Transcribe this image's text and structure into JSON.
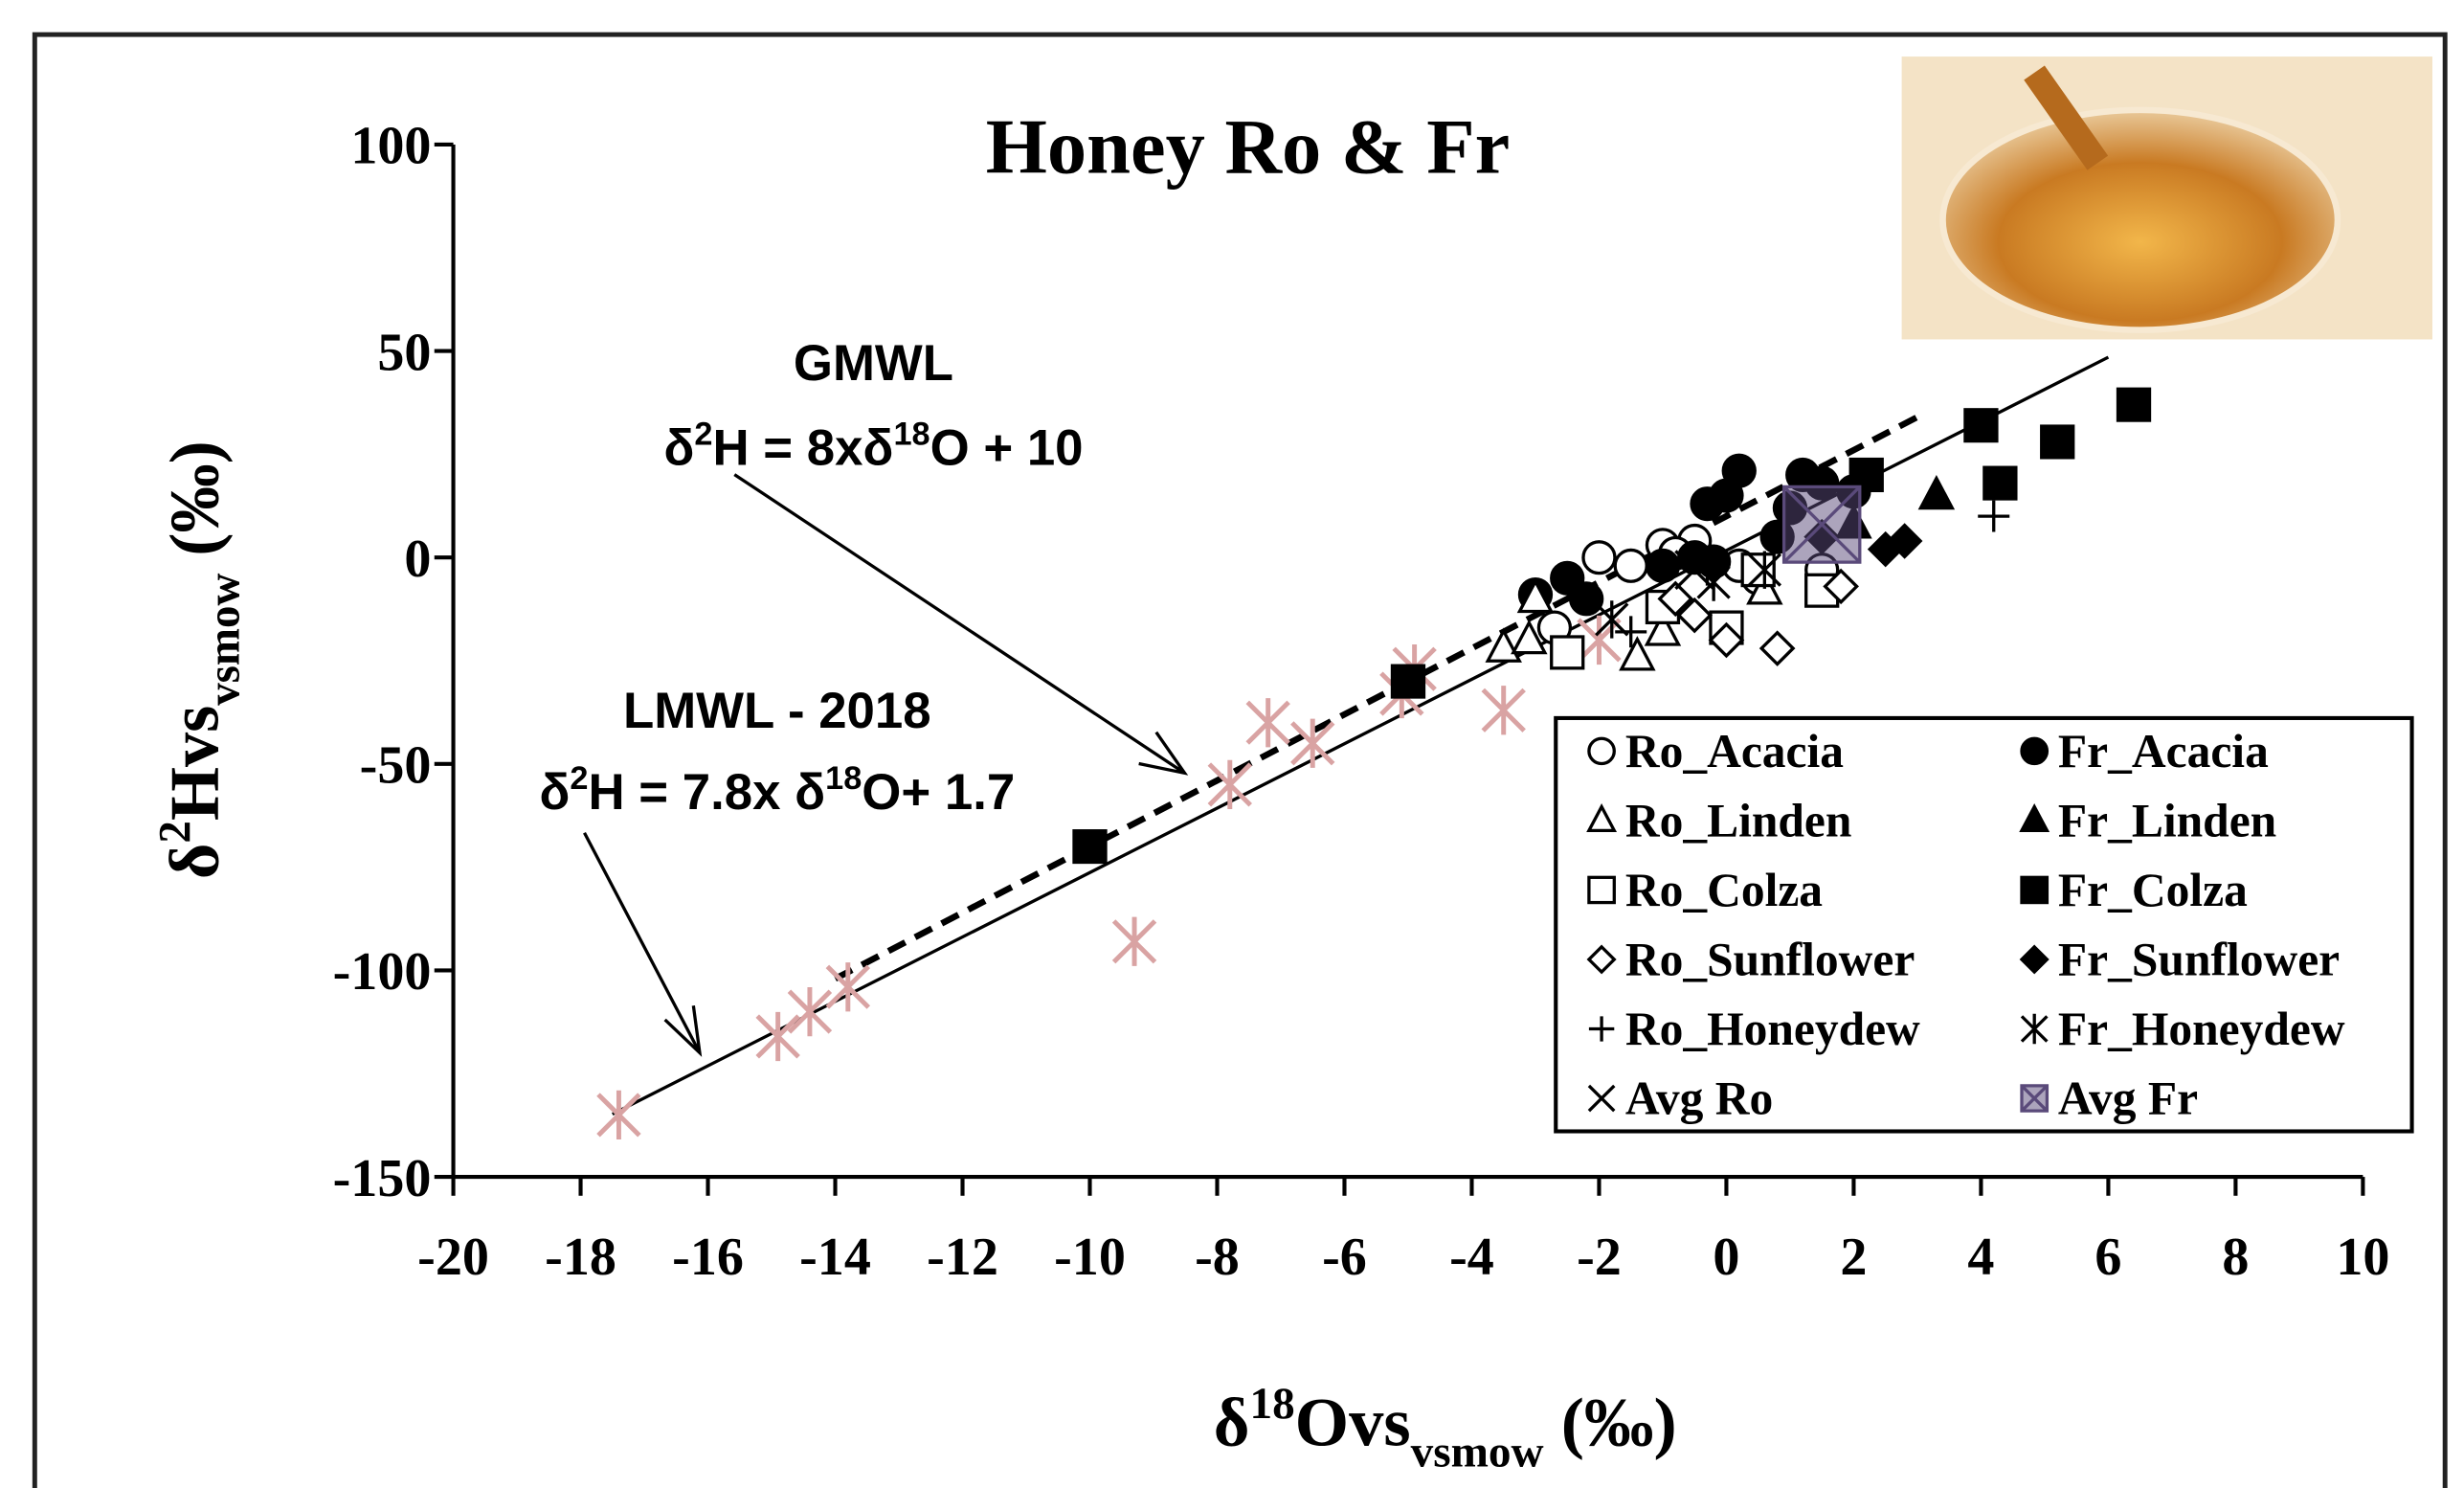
{
  "chart_data": {
    "type": "scatter",
    "title": "Honey Ro & Fr",
    "x_label": [
      {
        "t": "δ"
      },
      {
        "t": "18",
        "sup": true
      },
      {
        "t": "Ovs"
      },
      {
        "t": "vsmow",
        "sub": true
      },
      {
        "t": " (‰)"
      }
    ],
    "y_label": [
      {
        "t": "δ"
      },
      {
        "t": "2",
        "sup": true
      },
      {
        "t": "Hvs"
      },
      {
        "t": "vsmow",
        "sub": true
      },
      {
        "t": " (‰)"
      }
    ],
    "xlim": [
      -20,
      10
    ],
    "ylim": [
      -150,
      100
    ],
    "xticks": [
      -20,
      -18,
      -16,
      -14,
      -12,
      -10,
      -8,
      -6,
      -4,
      -2,
      0,
      2,
      4,
      6,
      8,
      10
    ],
    "yticks": [
      -150,
      -100,
      -50,
      0,
      50,
      100
    ],
    "legend": "lower right",
    "lines": [
      {
        "title": "GMWL",
        "equation": [
          {
            "t": "δ"
          },
          {
            "t": "2",
            "sup": true
          },
          {
            "t": "H = 8xδ"
          },
          {
            "t": "18",
            "sup": true
          },
          {
            "t": "O + 10"
          }
        ],
        "slope": 8,
        "intercept": 10,
        "x": [
          -14,
          3
        ],
        "dashed": true
      },
      {
        "title": "LMWL - 2018",
        "equation": [
          {
            "t": "δ"
          },
          {
            "t": "2",
            "sup": true
          },
          {
            "t": "H = 7.8x δ"
          },
          {
            "t": "18",
            "sup": true
          },
          {
            "t": "O+ 1.7"
          }
        ],
        "slope": 7.8,
        "intercept": 1.7,
        "x": [
          -17.5,
          6
        ],
        "dashed": false
      }
    ],
    "series": [
      {
        "name": "Ro_Acacia",
        "marker": "circle",
        "filled": false,
        "color": "#000000",
        "x": [
          -2,
          -1.5,
          -1,
          -0.5,
          -0.8,
          0.2,
          1.5,
          0.5,
          -2.7
        ],
        "values": [
          0,
          -2,
          3,
          4,
          1,
          -2,
          -3,
          -5,
          -17
        ]
      },
      {
        "name": "Fr_Acacia",
        "marker": "circle",
        "filled": true,
        "color": "#000000",
        "x": [
          -3,
          -2.5,
          -2.2,
          -1,
          -0.5,
          -0.3,
          0,
          0.2,
          1,
          1.2,
          1.5,
          2,
          -0.2,
          0.8
        ],
        "values": [
          -9,
          -5,
          -10,
          -2,
          0,
          13,
          15,
          21,
          12,
          20,
          18,
          16,
          -1,
          5
        ]
      },
      {
        "name": "Ro_Linden",
        "marker": "triangle",
        "filled": false,
        "color": "#000000",
        "x": [
          -3,
          -3.5,
          -3.1,
          -1.4,
          -1,
          0.6
        ],
        "values": [
          -10,
          -22,
          -20,
          -24,
          -18,
          -8
        ]
      },
      {
        "name": "Fr_Linden",
        "marker": "triangle",
        "filled": true,
        "color": "#000000",
        "x": [
          3.3,
          2
        ],
        "values": [
          15,
          8
        ]
      },
      {
        "name": "Ro_Colza",
        "marker": "square",
        "filled": false,
        "color": "#000000",
        "x": [
          -2.5,
          -1,
          0,
          0.5,
          1.5
        ],
        "values": [
          -23,
          -12,
          -17,
          -3,
          -8
        ]
      },
      {
        "name": "Fr_Colza",
        "marker": "square",
        "filled": true,
        "color": "#000000",
        "x": [
          4,
          4.3,
          5.2,
          6.4,
          2.2,
          -5,
          -10
        ],
        "values": [
          32,
          18,
          28,
          37,
          20,
          -30,
          -70
        ]
      },
      {
        "name": "Ro_Sunflower",
        "marker": "diamond",
        "filled": false,
        "color": "#000000",
        "x": [
          -0.8,
          -0.5,
          0,
          0.8,
          1.8
        ],
        "values": [
          -10,
          -14,
          -20,
          -22,
          -7
        ]
      },
      {
        "name": "Fr_Sunflower",
        "marker": "diamond",
        "filled": true,
        "color": "#000000",
        "x": [
          2.5,
          2.8,
          1.5
        ],
        "values": [
          2,
          4,
          5
        ]
      },
      {
        "name": "Ro_Honeydew",
        "marker": "plus",
        "filled": false,
        "color": "#000000",
        "x": [
          -1.5,
          4.2,
          -0.3
        ],
        "values": [
          -18,
          10,
          -3
        ]
      },
      {
        "name": "Fr_Honeydew",
        "marker": "star",
        "filled": false,
        "color": "#000000",
        "x": [
          -1.8,
          -0.2,
          0.6
        ],
        "values": [
          -15,
          -6,
          -3
        ]
      },
      {
        "name": "Avg Ro",
        "marker": "x",
        "filled": false,
        "color": "#000000",
        "x": [
          -0.5
        ],
        "values": [
          -3
        ]
      },
      {
        "name": "Avg Fr",
        "marker": "boxx",
        "filled": false,
        "color": "#5a4a7a",
        "x": [
          1.5
        ],
        "values": [
          8
        ]
      },
      {
        "marker": "star",
        "filled": false,
        "color": "#d9a3a3",
        "x": [
          -17.4,
          -14.9,
          -14.4,
          -13.8,
          -9.3,
          -7.8,
          -7.2,
          -6.5,
          -5.1,
          -4.9,
          -3.5,
          -2
        ],
        "values": [
          -135,
          -116,
          -110,
          -104,
          -93,
          -55,
          -40,
          -45,
          -33,
          -27,
          -37,
          -20
        ]
      }
    ]
  }
}
